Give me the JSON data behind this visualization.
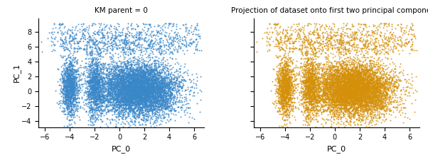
{
  "title_left": "KM parent = 0",
  "title_right": "Projection of dataset onto first two principal components",
  "xlabel": "PC_0",
  "ylabel": "PC_1",
  "xlim": [
    -6.5,
    6.8
  ],
  "ylim": [
    -4.8,
    9.8
  ],
  "color_left": "#3a87c8",
  "color_right": "#d4900a",
  "n_points": 10000,
  "marker_size": 2,
  "alpha": 0.85,
  "seed": 42,
  "xticks": [
    -6,
    -4,
    -2,
    0,
    2,
    4,
    6
  ],
  "yticks_left": [
    -4,
    -2,
    0,
    2,
    4,
    6,
    8
  ]
}
